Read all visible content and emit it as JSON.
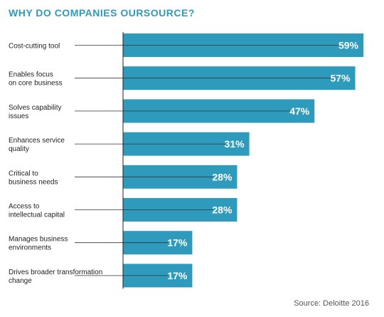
{
  "chart_data": {
    "type": "bar",
    "orientation": "horizontal",
    "title": "WHY DO COMPANIES OURSOURCE?",
    "categories": [
      [
        "Cost-cutting tool"
      ],
      [
        "Enables focus",
        "on core business"
      ],
      [
        "Solves capability",
        "issues"
      ],
      [
        "Enhances service",
        "quality"
      ],
      [
        "Critical to",
        "business needs"
      ],
      [
        "Access to",
        "intellectual capital"
      ],
      [
        "Manages business",
        "environments"
      ],
      [
        "Drives broader transformation",
        "change"
      ]
    ],
    "values": [
      59,
      57,
      47,
      31,
      28,
      28,
      17,
      17
    ],
    "value_labels": [
      "59%",
      "57%",
      "47%",
      "31%",
      "28%",
      "28%",
      "17%",
      "17%"
    ],
    "unit": "%",
    "xlim": [
      0,
      60
    ],
    "grid": false,
    "legend": "none",
    "bar_color": "#2e9bbd",
    "label_color": "#ffffff"
  },
  "source": "Source: Deloitte 2016"
}
